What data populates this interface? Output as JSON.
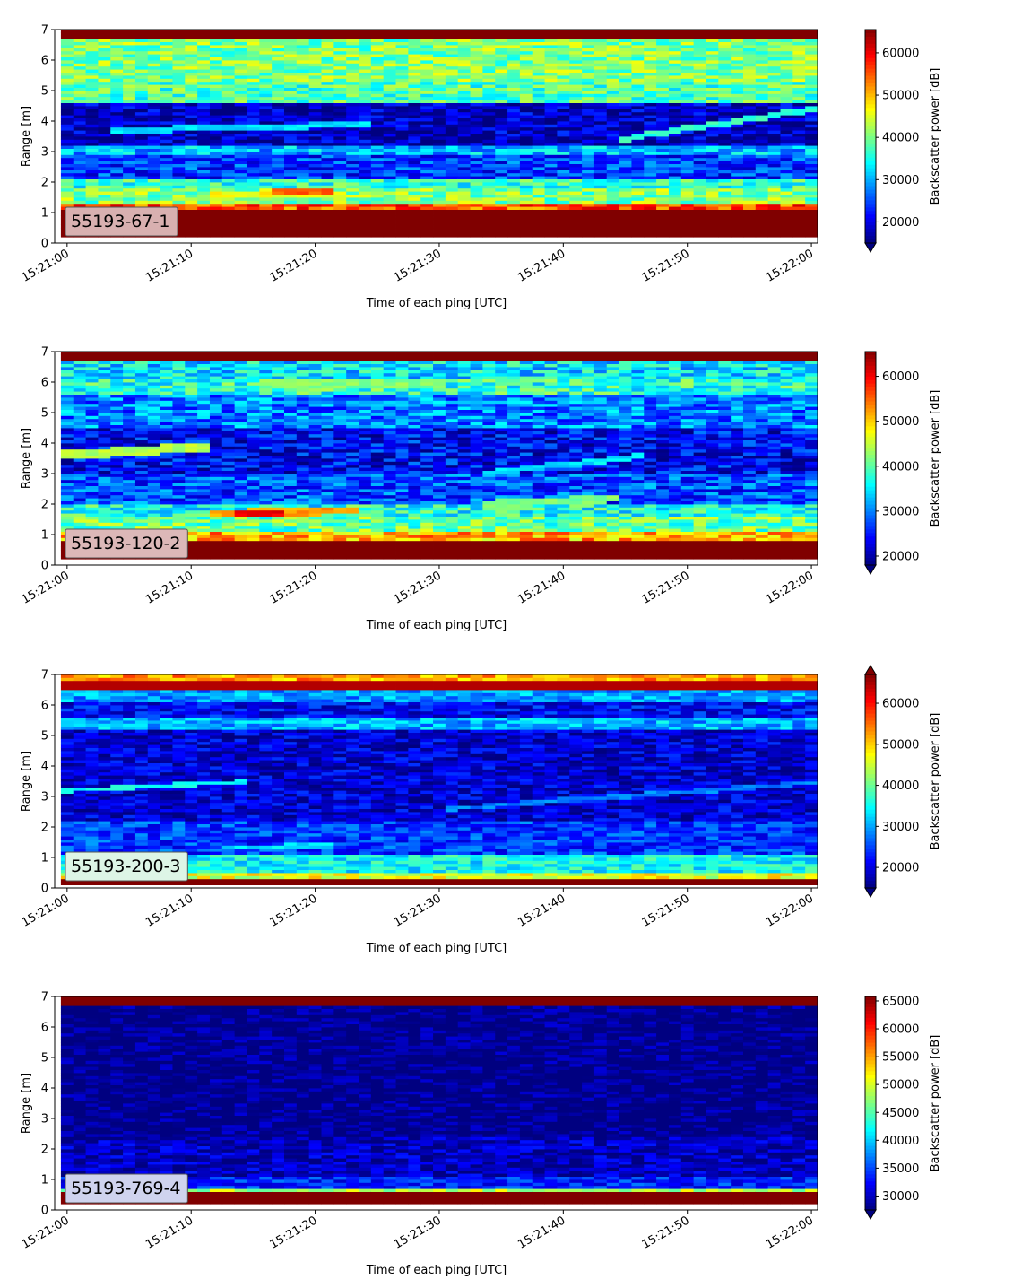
{
  "chart_data": [
    {
      "type": "heatmap",
      "label": "55193-67-1",
      "label_bg": "#d8b0b0",
      "xlabel": "Time of each ping [UTC]",
      "ylabel": "Range [m]",
      "cbar_label": "Backscatter power [dB]",
      "ylim": [
        0,
        7
      ],
      "yticks": [
        "0",
        "1",
        "2",
        "3",
        "4",
        "5",
        "6",
        "7"
      ],
      "xlim": [
        "15:20:59",
        "15:22:00.5"
      ],
      "xticks": [
        "15:21:00",
        "15:21:10",
        "15:21:20",
        "15:21:30",
        "15:21:40",
        "15:21:50",
        "15:22:00"
      ],
      "cbar_range": [
        15000,
        65500
      ],
      "cbar_extend": "min",
      "cbar_ticks": [
        "20000",
        "30000",
        "40000",
        "50000",
        "60000"
      ],
      "cbar_tick_values": [
        20000,
        30000,
        40000,
        50000,
        60000
      ],
      "data_range_m": [
        0.2,
        7.0
      ],
      "levels": [
        {
          "r": [
            0.2,
            1.1
          ],
          "v": 1.0
        },
        {
          "r": [
            1.1,
            1.3
          ],
          "v": 0.8
        },
        {
          "r": [
            1.3,
            1.8
          ],
          "v": 0.5
        },
        {
          "r": [
            1.8,
            2.1
          ],
          "v": 0.42
        },
        {
          "r": [
            2.1,
            2.9
          ],
          "v": 0.18
        },
        {
          "r": [
            2.9,
            3.2
          ],
          "v": 0.3
        },
        {
          "r": [
            3.2,
            4.6
          ],
          "v": 0.06
        },
        {
          "r": [
            4.6,
            5.3
          ],
          "v": 0.45
        },
        {
          "r": [
            5.3,
            6.7
          ],
          "v": 0.5
        },
        {
          "r": [
            6.7,
            7.0
          ],
          "v": 1.0
        }
      ],
      "noise": 0.12,
      "features": [
        {
          "t0": 11,
          "t1": 22,
          "r0": 1.6,
          "r1": 1.6,
          "w": 0.2,
          "v": 0.62
        },
        {
          "t0": 16,
          "t1": 21,
          "r0": 1.7,
          "r1": 1.7,
          "w": 0.2,
          "v": 0.78
        },
        {
          "t0": 3,
          "t1": 24,
          "r0": 3.7,
          "r1": 3.9,
          "w": 0.2,
          "v": 0.35
        },
        {
          "t0": 44,
          "t1": 61,
          "r0": 3.4,
          "r1": 4.5,
          "w": 0.2,
          "v": 0.42
        }
      ]
    },
    {
      "type": "heatmap",
      "label": "55193-120-2",
      "label_bg": "#dcb8b8",
      "xlabel": "Time of each ping [UTC]",
      "ylabel": "Range [m]",
      "cbar_label": "Backscatter power [dB]",
      "ylim": [
        0,
        7
      ],
      "yticks": [
        "0",
        "1",
        "2",
        "3",
        "4",
        "5",
        "6",
        "7"
      ],
      "xlim": [
        "15:20:59",
        "15:22:00.5"
      ],
      "xticks": [
        "15:21:00",
        "15:21:10",
        "15:21:20",
        "15:21:30",
        "15:21:40",
        "15:21:50",
        "15:22:00"
      ],
      "cbar_range": [
        18000,
        65500
      ],
      "cbar_extend": "min",
      "cbar_ticks": [
        "20000",
        "30000",
        "40000",
        "50000",
        "60000"
      ],
      "cbar_tick_values": [
        20000,
        30000,
        40000,
        50000,
        60000
      ],
      "data_range_m": [
        0.2,
        7.0
      ],
      "levels": [
        {
          "r": [
            0.2,
            0.8
          ],
          "v": 1.0
        },
        {
          "r": [
            0.8,
            1.1
          ],
          "v": 0.7
        },
        {
          "r": [
            1.1,
            1.6
          ],
          "v": 0.48
        },
        {
          "r": [
            1.6,
            2.0
          ],
          "v": 0.4
        },
        {
          "r": [
            2.0,
            3.0
          ],
          "v": 0.2
        },
        {
          "r": [
            3.0,
            4.5
          ],
          "v": 0.12
        },
        {
          "r": [
            4.5,
            5.6
          ],
          "v": 0.25
        },
        {
          "r": [
            5.6,
            6.1
          ],
          "v": 0.42
        },
        {
          "r": [
            6.1,
            6.7
          ],
          "v": 0.35
        },
        {
          "r": [
            6.7,
            7.0
          ],
          "v": 1.0
        }
      ],
      "noise": 0.13,
      "features": [
        {
          "t0": -1,
          "t1": 11,
          "r0": 3.6,
          "r1": 3.9,
          "w": 0.3,
          "v": 0.55
        },
        {
          "t0": 11,
          "t1": 23,
          "r0": 1.7,
          "r1": 1.8,
          "w": 0.25,
          "v": 0.72
        },
        {
          "t0": 13,
          "t1": 17,
          "r0": 1.7,
          "r1": 1.7,
          "w": 0.2,
          "v": 0.9
        },
        {
          "t0": 33,
          "t1": 44,
          "r0": 2.0,
          "r1": 2.2,
          "w": 0.25,
          "v": 0.5
        },
        {
          "t0": 33,
          "t1": 46,
          "r0": 3.0,
          "r1": 3.6,
          "w": 0.2,
          "v": 0.35
        },
        {
          "t0": 15,
          "t1": 30,
          "r0": 5.9,
          "r1": 5.9,
          "w": 0.3,
          "v": 0.5
        }
      ]
    },
    {
      "type": "heatmap",
      "label": "55193-200-3",
      "label_bg": "#ddf5e6",
      "xlabel": "Time of each ping [UTC]",
      "ylabel": "Range [m]",
      "cbar_label": "Backscatter power [dB]",
      "ylim": [
        0,
        7
      ],
      "yticks": [
        "0",
        "1",
        "2",
        "3",
        "4",
        "5",
        "6",
        "7"
      ],
      "xlim": [
        "15:20:59",
        "15:22:00.5"
      ],
      "xticks": [
        "15:21:00",
        "15:21:10",
        "15:21:20",
        "15:21:30",
        "15:21:40",
        "15:21:50",
        "15:22:00"
      ],
      "cbar_range": [
        15000,
        67000
      ],
      "cbar_extend": "both",
      "cbar_ticks": [
        "20000",
        "30000",
        "40000",
        "50000",
        "60000"
      ],
      "cbar_tick_values": [
        20000,
        30000,
        40000,
        50000,
        60000
      ],
      "data_range_m": [
        0.1,
        7.0
      ],
      "levels": [
        {
          "r": [
            0.1,
            0.3
          ],
          "v": 1.0
        },
        {
          "r": [
            0.3,
            0.5
          ],
          "v": 0.6
        },
        {
          "r": [
            0.5,
            1.1
          ],
          "v": 0.38
        },
        {
          "r": [
            1.1,
            2.2
          ],
          "v": 0.18
        },
        {
          "r": [
            2.2,
            5.2
          ],
          "v": 0.08
        },
        {
          "r": [
            5.2,
            5.6
          ],
          "v": 0.3
        },
        {
          "r": [
            5.6,
            6.1
          ],
          "v": 0.12
        },
        {
          "r": [
            6.1,
            6.5
          ],
          "v": 0.28
        },
        {
          "r": [
            6.5,
            6.8
          ],
          "v": 0.95
        },
        {
          "r": [
            6.8,
            7.0
          ],
          "v": 0.72
        }
      ],
      "noise": 0.1,
      "features": [
        {
          "t0": -1,
          "t1": 14,
          "r0": 3.2,
          "r1": 3.5,
          "w": 0.15,
          "v": 0.38
        },
        {
          "t0": 12,
          "t1": 21,
          "r0": 1.35,
          "r1": 1.4,
          "w": 0.15,
          "v": 0.35
        },
        {
          "t0": 30,
          "t1": 61,
          "r0": 2.6,
          "r1": 3.5,
          "w": 0.15,
          "v": 0.25
        }
      ]
    },
    {
      "type": "heatmap",
      "label": "55193-769-4",
      "label_bg": "#cfd3ee",
      "xlabel": "Time of each ping [UTC]",
      "ylabel": "Range [m]",
      "cbar_label": "Backscatter power [dB]",
      "ylim": [
        0,
        7
      ],
      "yticks": [
        "0",
        "1",
        "2",
        "3",
        "4",
        "5",
        "6",
        "7"
      ],
      "xlim": [
        "15:20:59",
        "15:22:00.5"
      ],
      "xticks": [
        "15:21:00",
        "15:21:10",
        "15:21:20",
        "15:21:30",
        "15:21:40",
        "15:21:50",
        "15:22:00"
      ],
      "cbar_range": [
        27500,
        65800
      ],
      "cbar_extend": "min",
      "cbar_ticks": [
        "30000",
        "35000",
        "40000",
        "45000",
        "50000",
        "55000",
        "60000",
        "65000"
      ],
      "cbar_tick_values": [
        30000,
        35000,
        40000,
        45000,
        50000,
        55000,
        60000,
        65000
      ],
      "data_range_m": [
        0.2,
        7.0
      ],
      "levels": [
        {
          "r": [
            0.2,
            0.6
          ],
          "v": 1.0
        },
        {
          "r": [
            0.6,
            0.75
          ],
          "v": 0.55
        },
        {
          "r": [
            0.75,
            1.1
          ],
          "v": 0.16
        },
        {
          "r": [
            1.1,
            2.4
          ],
          "v": 0.06
        },
        {
          "r": [
            2.4,
            6.65
          ],
          "v": 0.0
        },
        {
          "r": [
            6.65,
            7.0
          ],
          "v": 1.0
        }
      ],
      "noise": 0.09,
      "features": []
    }
  ]
}
